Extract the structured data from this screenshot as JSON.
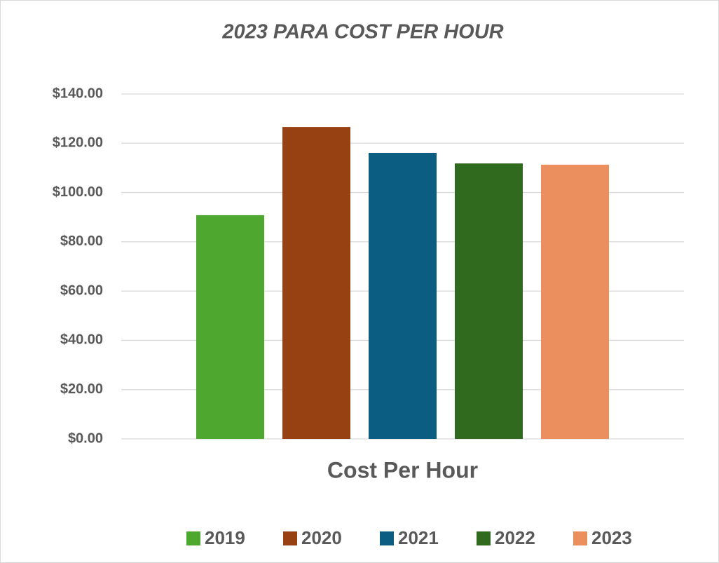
{
  "chart_data": {
    "type": "bar",
    "title": "2023 PARA COST PER HOUR",
    "categories": [
      "Cost Per Hour"
    ],
    "series": [
      {
        "name": "2019",
        "color": "#4ea72e",
        "values": [
          90.8
        ]
      },
      {
        "name": "2020",
        "color": "#974011",
        "values": [
          126.6
        ]
      },
      {
        "name": "2021",
        "color": "#0b5e81",
        "values": [
          116.1
        ]
      },
      {
        "name": "2022",
        "color": "#306a1f",
        "values": [
          111.8
        ]
      },
      {
        "name": "2023",
        "color": "#ec8f5e",
        "values": [
          111.3
        ]
      }
    ],
    "ylim": [
      0,
      140
    ],
    "yticks": [
      {
        "value": 0,
        "label": "$0.00"
      },
      {
        "value": 20,
        "label": "$20.00"
      },
      {
        "value": 40,
        "label": "$40.00"
      },
      {
        "value": 60,
        "label": "$60.00"
      },
      {
        "value": 80,
        "label": "$80.00"
      },
      {
        "value": 100,
        "label": "$100.00"
      },
      {
        "value": 120,
        "label": "$120.00"
      },
      {
        "value": 140,
        "label": "$140.00"
      }
    ],
    "grid": true,
    "legend": "bottom"
  }
}
